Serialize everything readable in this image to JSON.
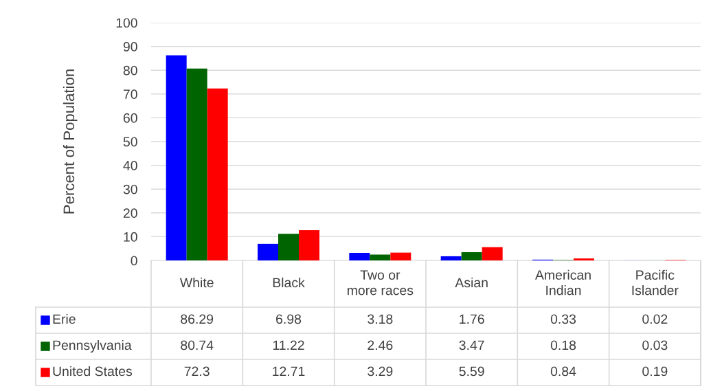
{
  "chart_data": {
    "type": "bar",
    "ylabel": "Percent of Population",
    "categories": [
      "White",
      "Black",
      "Two or\nmore races",
      "Asian",
      "American\nIndian",
      "Pacific\nIslander"
    ],
    "series": [
      {
        "name": "Erie",
        "color": "#0000ff",
        "values": [
          86.29,
          6.98,
          3.18,
          1.76,
          0.33,
          0.02
        ]
      },
      {
        "name": "Pennsylvania",
        "color": "#006400",
        "values": [
          80.74,
          11.22,
          2.46,
          3.47,
          0.18,
          0.03
        ]
      },
      {
        "name": "United States",
        "color": "#ff0000",
        "values": [
          72.3,
          12.71,
          3.29,
          5.59,
          0.84,
          0.19
        ]
      }
    ],
    "ylim": [
      0,
      100
    ],
    "yticks": [
      0,
      10,
      20,
      30,
      40,
      50,
      60,
      70,
      80,
      90,
      100
    ],
    "grid": "y",
    "data_labels": true,
    "legend": "bottom left"
  }
}
